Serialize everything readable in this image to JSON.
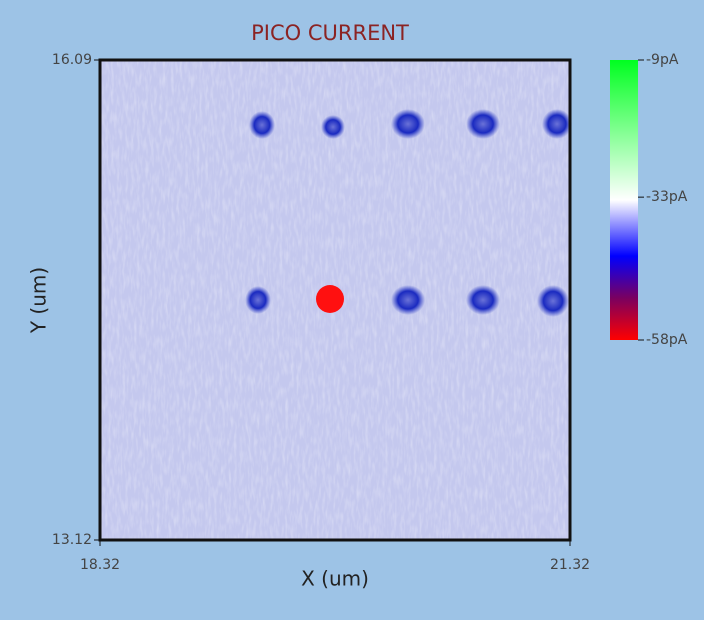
{
  "chart_data": {
    "type": "image",
    "title": "PICO CURRENT",
    "x_label": "X (um)",
    "y_label": "Y (um)",
    "xlim": [
      18.32,
      21.32
    ],
    "xticks": [
      18.32,
      21.32
    ],
    "ylim": [
      13.12,
      16.09
    ],
    "yticks": [
      13.12,
      16.09
    ],
    "colorbar": {
      "lim": [
        -58,
        -9
      ],
      "ticks": [
        {
          "value": -9,
          "label": "-9pA"
        },
        {
          "value": -33,
          "label": "-33pA"
        },
        {
          "value": -58,
          "label": "-58pA"
        }
      ]
    }
  }
}
